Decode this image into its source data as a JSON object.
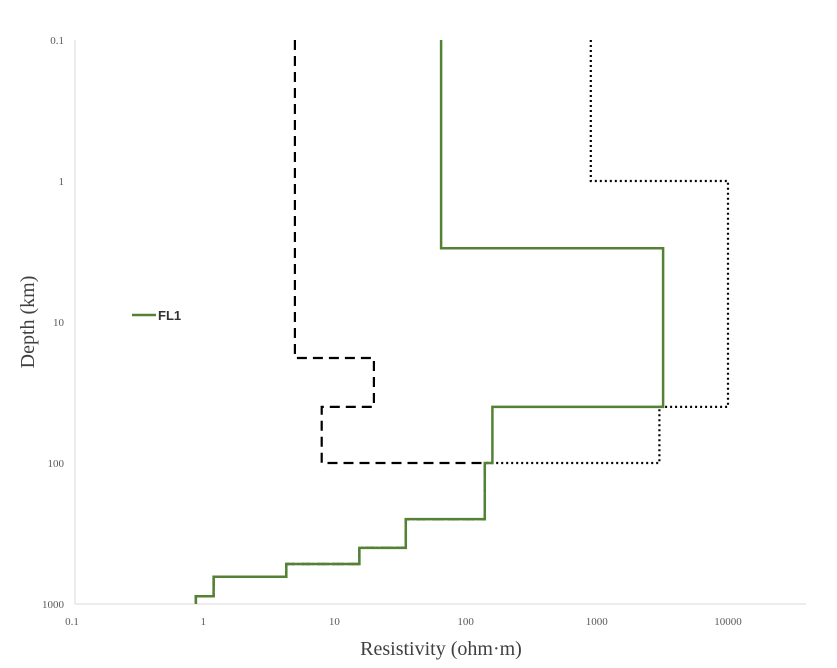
{
  "chart_data": {
    "type": "line",
    "xlabel": "Resistivity (ohm·m)",
    "ylabel": "Depth (km)",
    "x_scale": "log",
    "y_scale": "log",
    "y_inverted": true,
    "xlim": [
      0.1,
      10000
    ],
    "ylim": [
      0.1,
      1000
    ],
    "x_ticks": [
      "0.1",
      "1",
      "10",
      "100",
      "1000",
      "10000"
    ],
    "y_ticks": [
      "0.1",
      "1",
      "10",
      "100",
      "1000"
    ],
    "grid": false,
    "legend": {
      "position": "left",
      "entries": [
        "FL1"
      ]
    },
    "series": [
      {
        "name": "FL1",
        "color": "#548235",
        "style": "solid",
        "points": [
          [
            65,
            0.1
          ],
          [
            65,
            3
          ],
          [
            3200,
            3
          ],
          [
            3200,
            40
          ],
          [
            160,
            40
          ],
          [
            160,
            100
          ],
          [
            140,
            100
          ],
          [
            140,
            250
          ],
          [
            35,
            250
          ],
          [
            35,
            400
          ],
          [
            15.5,
            400
          ],
          [
            15.5,
            520
          ],
          [
            4.3,
            520
          ],
          [
            4.3,
            640
          ],
          [
            1.2,
            640
          ],
          [
            1.2,
            880
          ],
          [
            0.88,
            880
          ],
          [
            0.88,
            1000
          ]
        ]
      },
      {
        "name": "",
        "color": "#000000",
        "style": "dashed",
        "points": [
          [
            5,
            0.1
          ],
          [
            5,
            18
          ],
          [
            20,
            18
          ],
          [
            20,
            40
          ],
          [
            8,
            40
          ],
          [
            8,
            100
          ],
          [
            140,
            100
          ],
          [
            140,
            250
          ],
          [
            35,
            250
          ],
          [
            35,
            400
          ],
          [
            15.5,
            400
          ],
          [
            15.5,
            520
          ],
          [
            4.3,
            520
          ],
          [
            4.3,
            640
          ],
          [
            1.2,
            640
          ],
          [
            1.2,
            880
          ],
          [
            0.88,
            880
          ],
          [
            0.88,
            1000
          ]
        ]
      },
      {
        "name": "",
        "color": "#000000",
        "style": "dotted",
        "points": [
          [
            900,
            0.1
          ],
          [
            900,
            1
          ],
          [
            10000,
            1
          ],
          [
            10000,
            40
          ],
          [
            3000,
            40
          ],
          [
            3000,
            100
          ],
          [
            140,
            100
          ],
          [
            140,
            250
          ],
          [
            35,
            250
          ],
          [
            35,
            400
          ],
          [
            15.5,
            400
          ],
          [
            15.5,
            520
          ],
          [
            4.3,
            520
          ],
          [
            4.3,
            640
          ],
          [
            1.2,
            640
          ],
          [
            1.2,
            880
          ],
          [
            0.88,
            880
          ],
          [
            0.88,
            1000
          ]
        ]
      }
    ]
  }
}
